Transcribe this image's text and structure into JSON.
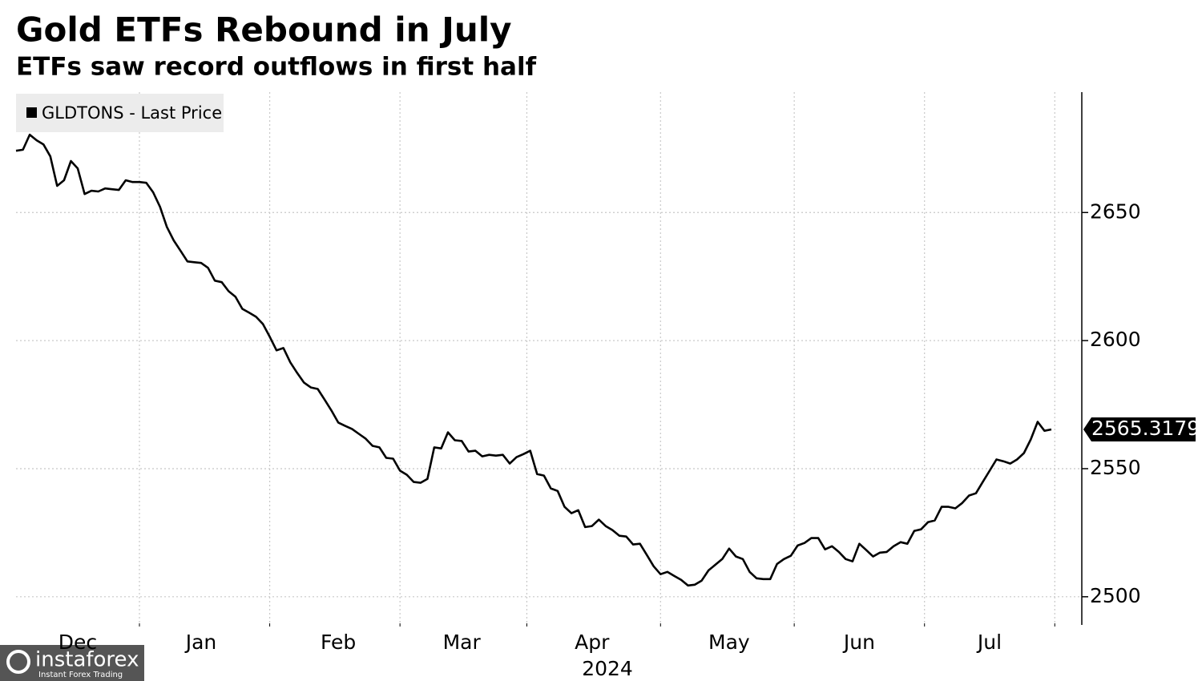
{
  "chart_data": {
    "type": "line",
    "title": "Gold ETFs Rebound in July",
    "subtitle": "ETFs saw record outflows in first half",
    "year_label": "2024",
    "watermark": {
      "brand": "instaforex",
      "tagline": "Instant Forex Trading"
    },
    "categories": [
      null,
      null,
      null,
      null,
      null,
      null,
      null,
      null,
      null,
      "Dec",
      null,
      null,
      null,
      null,
      null,
      null,
      null,
      null,
      null,
      null,
      null,
      null,
      null,
      null,
      null,
      null,
      null,
      "Jan",
      null,
      null,
      null,
      null,
      null,
      null,
      null,
      null,
      null,
      null,
      null,
      null,
      null,
      null,
      null,
      null,
      null,
      null,
      null,
      "Feb",
      null,
      null,
      null,
      null,
      null,
      null,
      null,
      null,
      null,
      null,
      null,
      null,
      null,
      null,
      null,
      null,
      null,
      "Mar",
      null,
      null,
      null,
      null,
      null,
      null,
      null,
      null,
      null,
      null,
      null,
      null,
      null,
      null,
      null,
      null,
      null,
      null,
      "Apr",
      null,
      null,
      null,
      null,
      null,
      null,
      null,
      null,
      null,
      null,
      null,
      null,
      null,
      null,
      null,
      null,
      null,
      null,
      null,
      "May",
      null,
      null,
      null,
      null,
      null,
      null,
      null,
      null,
      null,
      null,
      null,
      null,
      null,
      null,
      null,
      null,
      null,
      null,
      "Jun",
      null,
      null,
      null,
      null,
      null,
      null,
      null,
      null,
      null,
      null,
      null,
      null,
      null,
      null,
      null,
      null,
      null,
      null,
      "Jul",
      null,
      null,
      null,
      null,
      null,
      null,
      null,
      null,
      null
    ],
    "series": [
      {
        "name": "GLDTONS - Last Price",
        "color": "#000000",
        "values": [
          2674.1,
          2674.5,
          2680.4,
          2678.2,
          2676.6,
          2671.9,
          2660.4,
          2662.6,
          2670.1,
          2667.2,
          2657.2,
          2658.5,
          2658.2,
          2659.4,
          2659.1,
          2658.8,
          2662.6,
          2661.9,
          2661.9,
          2661.6,
          2657.9,
          2652.2,
          2644.4,
          2639.1,
          2635.0,
          2630.9,
          2630.6,
          2630.3,
          2628.4,
          2623.4,
          2622.8,
          2619.3,
          2617.1,
          2612.4,
          2610.9,
          2609.3,
          2606.5,
          2601.5,
          2596.2,
          2597.1,
          2591.5,
          2587.4,
          2583.6,
          2581.7,
          2581.1,
          2577.0,
          2572.7,
          2568.0,
          2566.7,
          2565.5,
          2563.6,
          2561.7,
          2558.9,
          2558.3,
          2554.2,
          2553.9,
          2549.2,
          2547.6,
          2544.8,
          2544.5,
          2546.0,
          2558.3,
          2557.9,
          2564.2,
          2561.1,
          2560.8,
          2556.7,
          2557.0,
          2554.8,
          2555.4,
          2555.1,
          2555.4,
          2552.0,
          2554.5,
          2555.7,
          2557.0,
          2547.9,
          2547.3,
          2542.3,
          2541.3,
          2535.1,
          2532.6,
          2533.8,
          2527.2,
          2527.6,
          2530.1,
          2527.6,
          2526.0,
          2523.8,
          2523.5,
          2520.4,
          2520.7,
          2516.3,
          2511.9,
          2508.8,
          2509.7,
          2508.1,
          2506.6,
          2504.4,
          2504.7,
          2506.3,
          2510.3,
          2512.5,
          2514.7,
          2518.8,
          2515.7,
          2514.7,
          2509.7,
          2507.2,
          2506.9,
          2506.9,
          2512.8,
          2514.7,
          2516.0,
          2520.0,
          2521.0,
          2522.9,
          2522.9,
          2518.5,
          2519.7,
          2517.5,
          2514.7,
          2513.8,
          2520.7,
          2518.2,
          2515.7,
          2517.2,
          2517.5,
          2519.7,
          2521.3,
          2520.7,
          2525.7,
          2526.3,
          2529.1,
          2529.8,
          2535.1,
          2535.1,
          2534.5,
          2536.6,
          2539.5,
          2540.4,
          2544.8,
          2549.2,
          2553.6,
          2552.9,
          2552.0,
          2553.6,
          2556.1,
          2561.4,
          2568.3,
          2564.8,
          2565.3179
        ]
      }
    ],
    "ylim": [
      2489,
      2697
    ],
    "yticks": [
      2500,
      2550,
      2600,
      2650
    ],
    "grid": true,
    "y_axis_side": "right",
    "legend": "top-left",
    "last_value_label": true
  }
}
